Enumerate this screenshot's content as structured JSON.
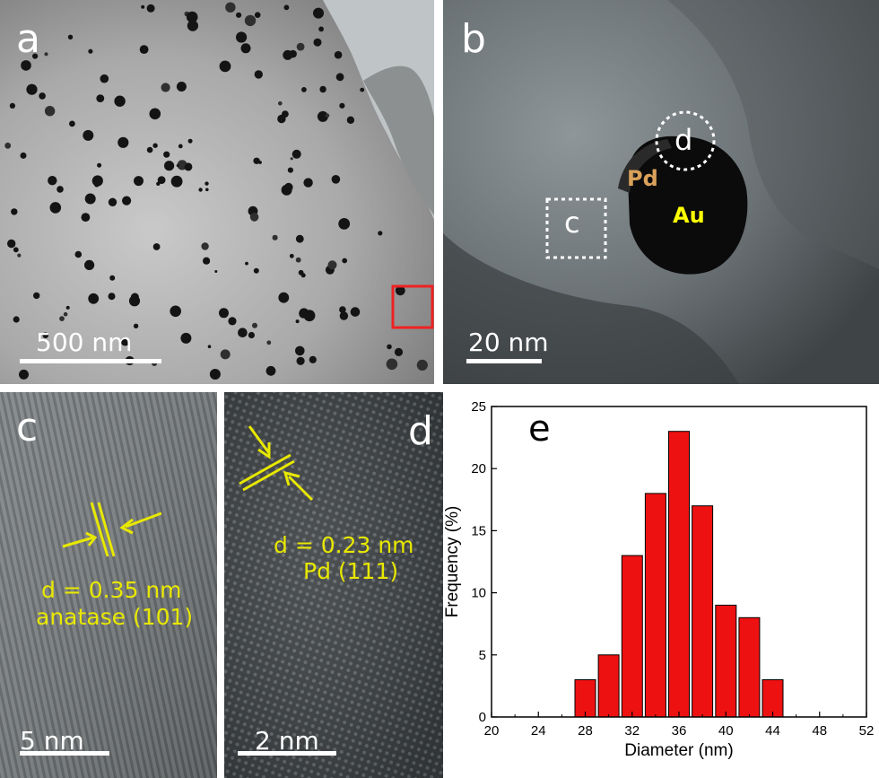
{
  "panels": {
    "a": {
      "label": "a",
      "scale": "500 nm"
    },
    "b": {
      "label": "b",
      "scale": "20 nm",
      "box_c": "c",
      "circle_d": "d",
      "pd": "Pd",
      "au": "Au"
    },
    "c": {
      "label": "c",
      "scale": "5 nm",
      "d_spacing": "d = 0.35 nm",
      "plane": "anatase (101)"
    },
    "d": {
      "label": "d",
      "scale": "2 nm",
      "d_spacing": "d = 0.23 nm",
      "plane": "Pd (111)"
    }
  },
  "colors": {
    "bar": "#ee1111",
    "annotation": "#e8e800",
    "pd": "#d9a15a",
    "au": "#ffff00",
    "roi": "#ee2222"
  },
  "chart_data": {
    "type": "bar",
    "panel_label": "e",
    "xlabel": "Diameter (nm)",
    "ylabel": "Frequency (%)",
    "xlim": [
      20,
      52
    ],
    "ylim": [
      0,
      25
    ],
    "xticks": [
      20,
      24,
      28,
      32,
      36,
      40,
      44,
      48,
      52
    ],
    "yticks": [
      0,
      5,
      10,
      15,
      20,
      25
    ],
    "bin_width": 2,
    "x": [
      28,
      30,
      32,
      34,
      36,
      38,
      40,
      42,
      44
    ],
    "values": [
      3,
      5,
      13,
      18,
      23,
      17,
      9,
      8,
      3
    ]
  }
}
